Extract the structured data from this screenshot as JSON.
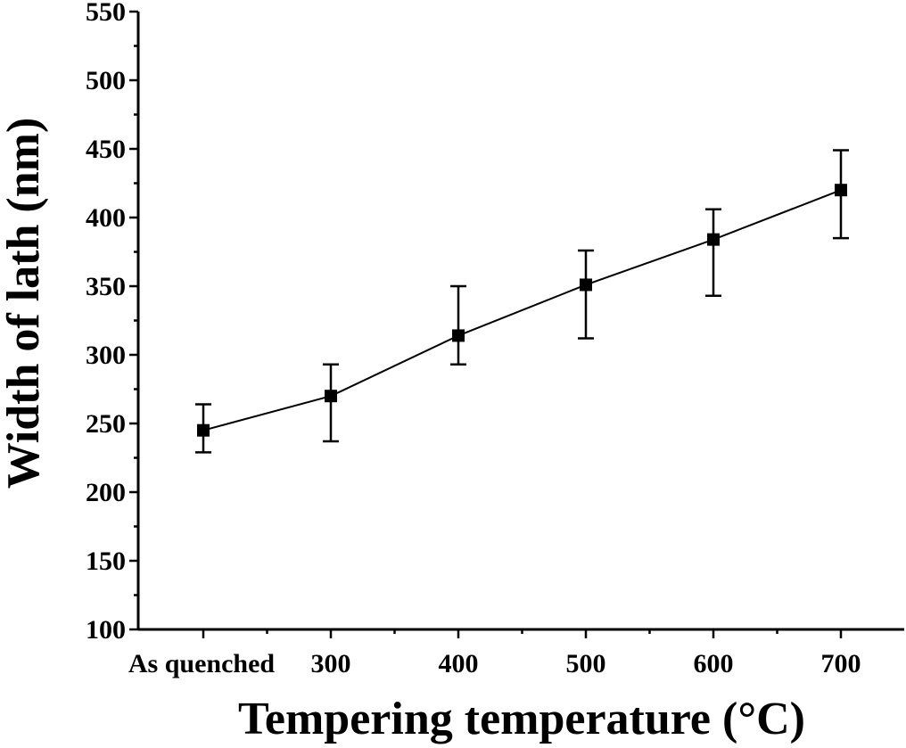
{
  "chart_data": {
    "type": "line",
    "xlabel": "Tempering temperature (°C)",
    "ylabel": "Width of lath (nm)",
    "categories": [
      "As quenched",
      "300",
      "400",
      "500",
      "600",
      "700"
    ],
    "ylim": [
      100,
      550
    ],
    "yticks": [
      100,
      150,
      200,
      250,
      300,
      350,
      400,
      450,
      500,
      550
    ],
    "series": [
      {
        "values": [
          245,
          270,
          314,
          351,
          384,
          420
        ],
        "err_low": [
          229,
          237,
          293,
          312,
          343,
          385
        ],
        "err_high": [
          264,
          293,
          350,
          376,
          406,
          449
        ]
      }
    ],
    "grid": false,
    "legend": "none"
  }
}
